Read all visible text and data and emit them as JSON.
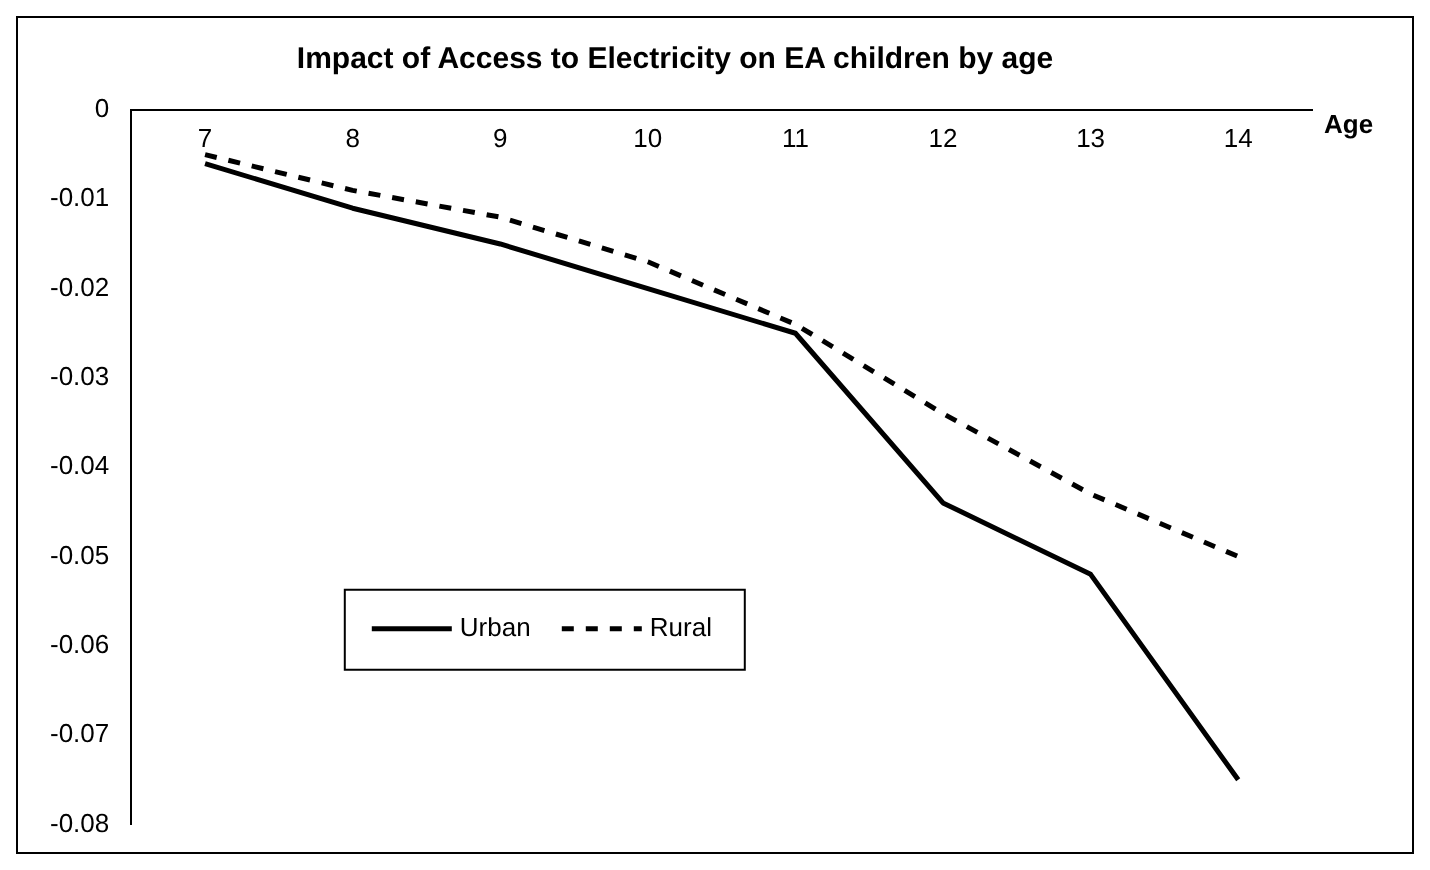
{
  "chart_data": {
    "type": "line",
    "title": "Impact of Access to Electricity on EA children by age",
    "xlabel": "Age",
    "categories": [
      "7",
      "8",
      "9",
      "10",
      "11",
      "12",
      "13",
      "14"
    ],
    "series": [
      {
        "name": "Urban",
        "color": "#000000",
        "line_style": "solid",
        "values": [
          -0.006,
          -0.011,
          -0.015,
          -0.02,
          -0.025,
          -0.044,
          -0.052,
          -0.075
        ]
      },
      {
        "name": "Rural",
        "color": "#000000",
        "line_style": "dashed",
        "values": [
          -0.005,
          -0.009,
          -0.012,
          -0.017,
          -0.024,
          -0.034,
          -0.043,
          -0.05
        ]
      }
    ],
    "ylim": [
      -0.08,
      0
    ],
    "yticks": [
      0,
      -0.01,
      -0.02,
      -0.03,
      -0.04,
      -0.05,
      -0.06,
      -0.07,
      -0.08
    ],
    "grid": false,
    "legend": "center",
    "marker": "none"
  }
}
